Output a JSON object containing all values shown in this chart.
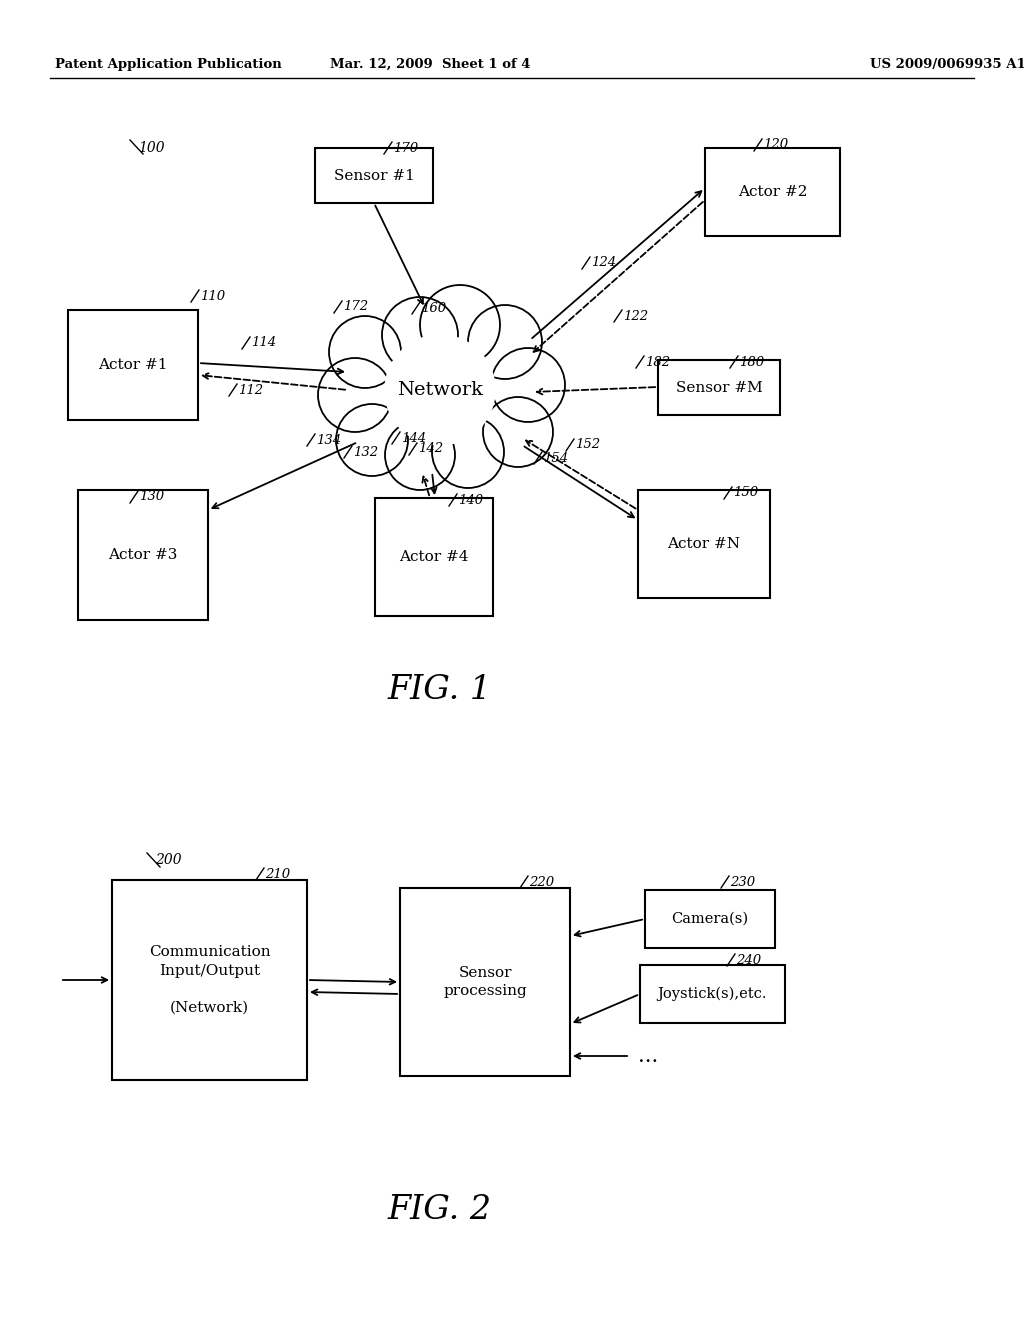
{
  "bg_color": "#ffffff",
  "header_left": "Patent Application Publication",
  "header_mid": "Mar. 12, 2009  Sheet 1 of 4",
  "header_right": "US 2009/0069935 A1",
  "fig1_label": "FIG. 1",
  "fig2_label": "FIG. 2",
  "network_label": "Network",
  "fig_width": 10.24,
  "fig_height": 13.2
}
